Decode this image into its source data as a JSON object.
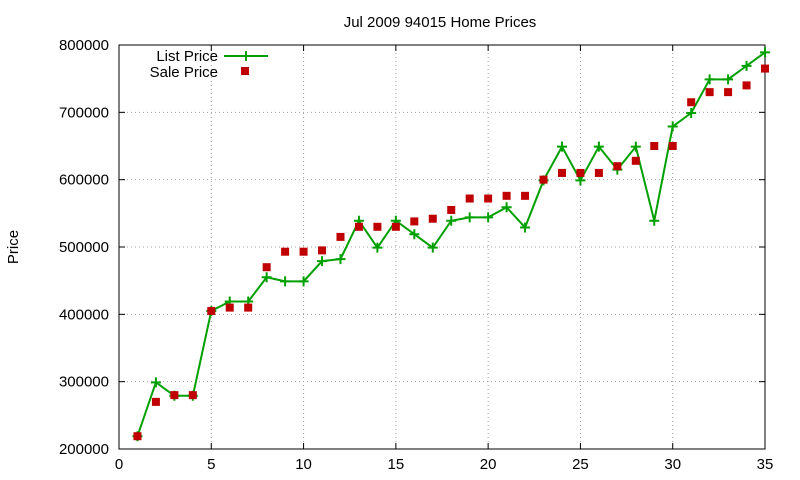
{
  "chart_data": {
    "type": "line",
    "title": "Jul 2009 94015 Home Prices",
    "xlabel": "",
    "ylabel": "Price",
    "xlim": [
      0,
      35
    ],
    "ylim": [
      200000,
      800000
    ],
    "x_ticks": [
      0,
      5,
      10,
      15,
      20,
      25,
      30,
      35
    ],
    "y_ticks": [
      200000,
      300000,
      400000,
      500000,
      600000,
      700000,
      800000
    ],
    "x_tick_labels": [
      "0",
      "5",
      "10",
      "15",
      "20",
      "25",
      "30",
      "35"
    ],
    "y_tick_labels": [
      "200000",
      "300000",
      "400000",
      "500000",
      "600000",
      "700000",
      "800000"
    ],
    "grid": true,
    "legend_position": "top-left",
    "x": [
      1,
      2,
      3,
      4,
      5,
      6,
      7,
      8,
      9,
      10,
      11,
      12,
      13,
      14,
      15,
      16,
      17,
      18,
      19,
      20,
      21,
      22,
      23,
      24,
      25,
      26,
      27,
      28,
      29,
      30,
      31,
      32,
      33,
      34,
      35
    ],
    "series": [
      {
        "name": "List Price",
        "style": "line-plus",
        "color": "#00a000",
        "values": [
          219000,
          299000,
          279000,
          279000,
          405000,
          419000,
          419000,
          455000,
          449000,
          449000,
          479000,
          482000,
          539000,
          499000,
          539000,
          519000,
          499000,
          539000,
          544000,
          544000,
          559000,
          529000,
          599000,
          649000,
          599000,
          649000,
          615000,
          649000,
          539000,
          679000,
          699000,
          749000,
          749000,
          769000,
          789000
        ]
      },
      {
        "name": "Sale Price",
        "style": "square-points",
        "color": "#c00000",
        "values": [
          219000,
          270000,
          280000,
          280000,
          405000,
          410000,
          410000,
          470000,
          493000,
          493000,
          495000,
          515000,
          530000,
          530000,
          530000,
          538000,
          542000,
          555000,
          572000,
          572000,
          576000,
          576000,
          600000,
          610000,
          610000,
          610000,
          620000,
          628000,
          650000,
          650000,
          715000,
          730000,
          730000,
          740000,
          765000
        ]
      }
    ]
  }
}
